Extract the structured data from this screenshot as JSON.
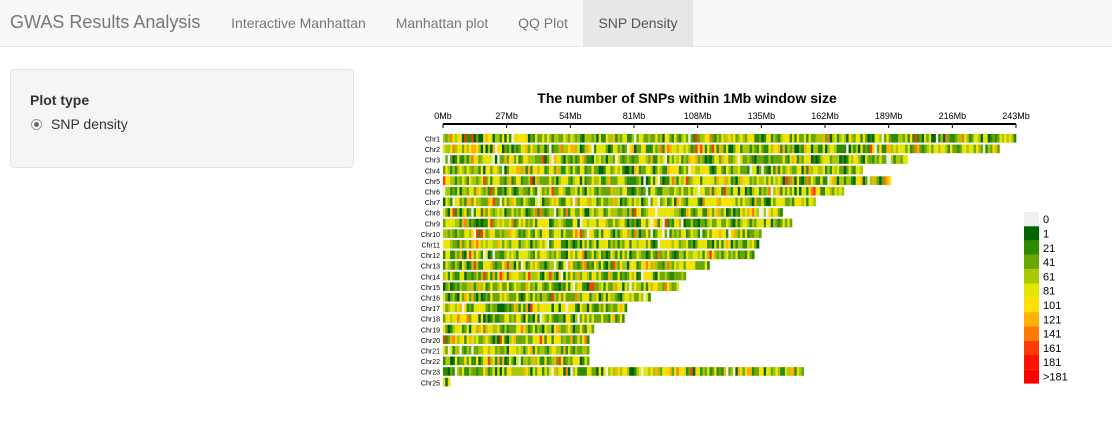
{
  "app": {
    "title": "GWAS Results Analysis"
  },
  "tabs": [
    {
      "label": "Interactive Manhattan",
      "active": false
    },
    {
      "label": "Manhattan plot",
      "active": false
    },
    {
      "label": "QQ Plot",
      "active": false
    },
    {
      "label": "SNP Density",
      "active": true
    }
  ],
  "sidebar": {
    "plot_type_label": "Plot type",
    "options": [
      {
        "label": "SNP density",
        "selected": true
      }
    ]
  },
  "chart_data": {
    "type": "heatmap",
    "title": "The number of SNPs within 1Mb window size",
    "x_ticks": [
      "0Mb",
      "27Mb",
      "54Mb",
      "81Mb",
      "108Mb",
      "135Mb",
      "162Mb",
      "189Mb",
      "216Mb",
      "243Mb"
    ],
    "x_unit": "Mb",
    "x_max": 243,
    "chromosomes": [
      {
        "name": "Chr1",
        "length_mb": 243
      },
      {
        "name": "Chr2",
        "length_mb": 236
      },
      {
        "name": "Chr3",
        "length_mb": 197
      },
      {
        "name": "Chr4",
        "length_mb": 178
      },
      {
        "name": "Chr5",
        "length_mb": 190
      },
      {
        "name": "Chr6",
        "length_mb": 170
      },
      {
        "name": "Chr7",
        "length_mb": 158
      },
      {
        "name": "Chr8",
        "length_mb": 144
      },
      {
        "name": "Chr9",
        "length_mb": 148
      },
      {
        "name": "Chr10",
        "length_mb": 135
      },
      {
        "name": "Chr11",
        "length_mb": 134
      },
      {
        "name": "Chr12",
        "length_mb": 132
      },
      {
        "name": "Chr13",
        "length_mb": 113
      },
      {
        "name": "Chr14",
        "length_mb": 103
      },
      {
        "name": "Chr15",
        "length_mb": 100
      },
      {
        "name": "Chr16",
        "length_mb": 88
      },
      {
        "name": "Chr17",
        "length_mb": 78
      },
      {
        "name": "Chr18",
        "length_mb": 78
      },
      {
        "name": "Chr19",
        "length_mb": 64
      },
      {
        "name": "Chr20",
        "length_mb": 62
      },
      {
        "name": "Chr21",
        "length_mb": 62
      },
      {
        "name": "Chr22",
        "length_mb": 62
      },
      {
        "name": "Chr23",
        "length_mb": 153
      },
      {
        "name": "Chr25",
        "length_mb": 3
      }
    ],
    "legend": [
      {
        "label": "0",
        "color": "#f0f0f0"
      },
      {
        "label": "1",
        "color": "#006400"
      },
      {
        "label": "21",
        "color": "#2e8b00"
      },
      {
        "label": "41",
        "color": "#6aa800"
      },
      {
        "label": "61",
        "color": "#a8c800"
      },
      {
        "label": "81",
        "color": "#e3e600"
      },
      {
        "label": "101",
        "color": "#ffe000"
      },
      {
        "label": "121",
        "color": "#ffb000"
      },
      {
        "label": "141",
        "color": "#ff7a00"
      },
      {
        "label": "161",
        "color": "#ff3a00"
      },
      {
        "label": "181",
        "color": "#ff1200"
      },
      {
        "label": ">181",
        "color": "#ff0000"
      }
    ]
  }
}
